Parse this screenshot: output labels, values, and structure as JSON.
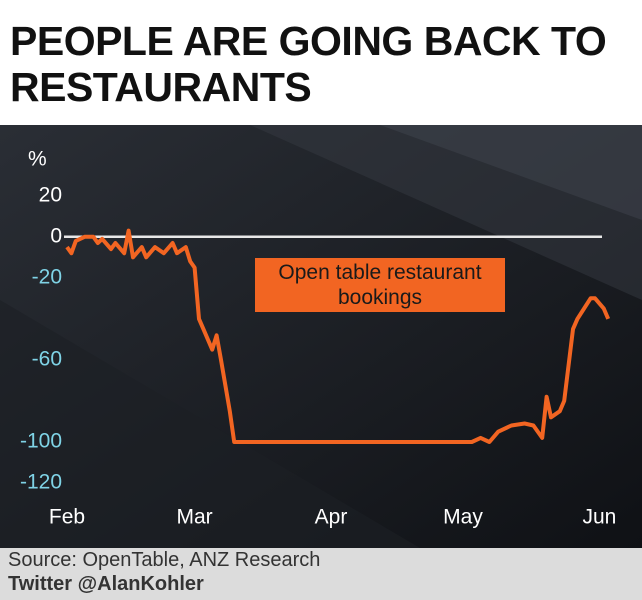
{
  "chart_data": {
    "type": "line",
    "title": "PEOPLE ARE GOING BACK TO RESTAURANTS",
    "y_label": "%",
    "annotation": "Open table restaurant bookings",
    "source": "Source: OpenTable, ANZ Research",
    "credit": "Twitter @AlanKohler",
    "x": [
      0,
      1,
      2,
      4,
      6,
      7,
      8,
      10,
      11,
      13,
      14,
      15,
      17,
      18,
      20,
      22,
      24,
      25,
      27,
      28,
      29,
      30,
      31,
      33,
      34,
      35,
      37,
      38,
      53,
      76,
      92,
      94,
      96,
      98,
      101,
      104,
      106,
      108,
      109,
      110,
      112,
      113,
      115,
      116,
      119,
      120,
      122,
      123
    ],
    "series": [
      {
        "name": "Open table restaurant bookings",
        "color": "#f26522",
        "values": [
          -5,
          -8,
          -2,
          0,
          0,
          -3,
          -1,
          -6,
          -3,
          -8,
          3,
          -10,
          -5,
          -10,
          -5,
          -8,
          -3,
          -8,
          -5,
          -12,
          -15,
          -40,
          -45,
          -55,
          -48,
          -60,
          -85,
          -100,
          -100,
          -100,
          -100,
          -98,
          -100,
          -95,
          -92,
          -91,
          -92,
          -98,
          -78,
          -88,
          -85,
          -80,
          -45,
          -40,
          -30,
          -30,
          -35,
          -40
        ]
      }
    ],
    "xlim": [
      -4,
      126
    ],
    "xticks": [
      {
        "value": 0,
        "label": "Feb"
      },
      {
        "value": 29,
        "label": "Mar"
      },
      {
        "value": 60,
        "label": "Apr"
      },
      {
        "value": 90,
        "label": "May"
      },
      {
        "value": 121,
        "label": "Jun"
      }
    ],
    "ylim": [
      -130,
      35
    ],
    "yticks": [
      20,
      0,
      -20,
      -60,
      -100,
      -120
    ],
    "reference_line": 0
  }
}
